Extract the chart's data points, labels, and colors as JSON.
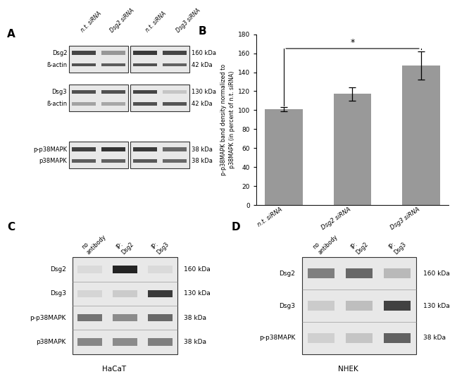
{
  "panel_A": {
    "label": "A",
    "blot_labels_left": [
      "Dsg2",
      "ß-actin",
      "Dsg3",
      "ß-actin",
      "p-p38MAPK",
      "p38MAPK"
    ],
    "blot_labels_right": [
      "160 kDa",
      "42 kDa",
      "130 kDa",
      "42 kDa",
      "38 kDa",
      "38 kDa"
    ],
    "col_labels": [
      "n.t. siRNA",
      "Dsg2 siRNA",
      "n.t. siRNA",
      "Dsg3 siRNA"
    ]
  },
  "panel_B": {
    "label": "B",
    "categories": [
      "n.t. siRNA",
      "Dsg2 siRNA",
      "Dsg3 siRNA"
    ],
    "values": [
      101,
      117,
      147
    ],
    "errors": [
      2,
      7,
      15
    ],
    "bar_color": "#999999",
    "ylim": [
      0,
      180
    ],
    "yticks": [
      0,
      20,
      40,
      60,
      80,
      100,
      120,
      140,
      160,
      180
    ]
  },
  "panel_C": {
    "label": "C",
    "col_labels": [
      "no\nantibody",
      "IP:\nDsg2",
      "IP:\nDsg3"
    ],
    "row_labels": [
      "Dsg2",
      "Dsg3",
      "p-p38MAPK",
      "p38MAPK"
    ],
    "right_labels": [
      "160 kDa",
      "130 kDa",
      "38 kDa",
      "38 kDa"
    ],
    "title": "HaCaT",
    "band_data": [
      [
        0.06,
        0.85,
        0.06
      ],
      [
        0.08,
        0.12,
        0.75
      ],
      [
        0.5,
        0.4,
        0.55
      ],
      [
        0.42,
        0.4,
        0.45
      ]
    ]
  },
  "panel_D": {
    "label": "D",
    "col_labels": [
      "no\nantibody",
      "IP:\nDsg2",
      "IP:\nDsg3"
    ],
    "row_labels": [
      "Dsg2",
      "Dsg3",
      "p-p38MAPK"
    ],
    "right_labels": [
      "160 kDa",
      "130 kDa",
      "38 kDa"
    ],
    "title": "NHEK",
    "band_data": [
      [
        0.45,
        0.55,
        0.2
      ],
      [
        0.12,
        0.18,
        0.72
      ],
      [
        0.1,
        0.15,
        0.58
      ]
    ]
  }
}
